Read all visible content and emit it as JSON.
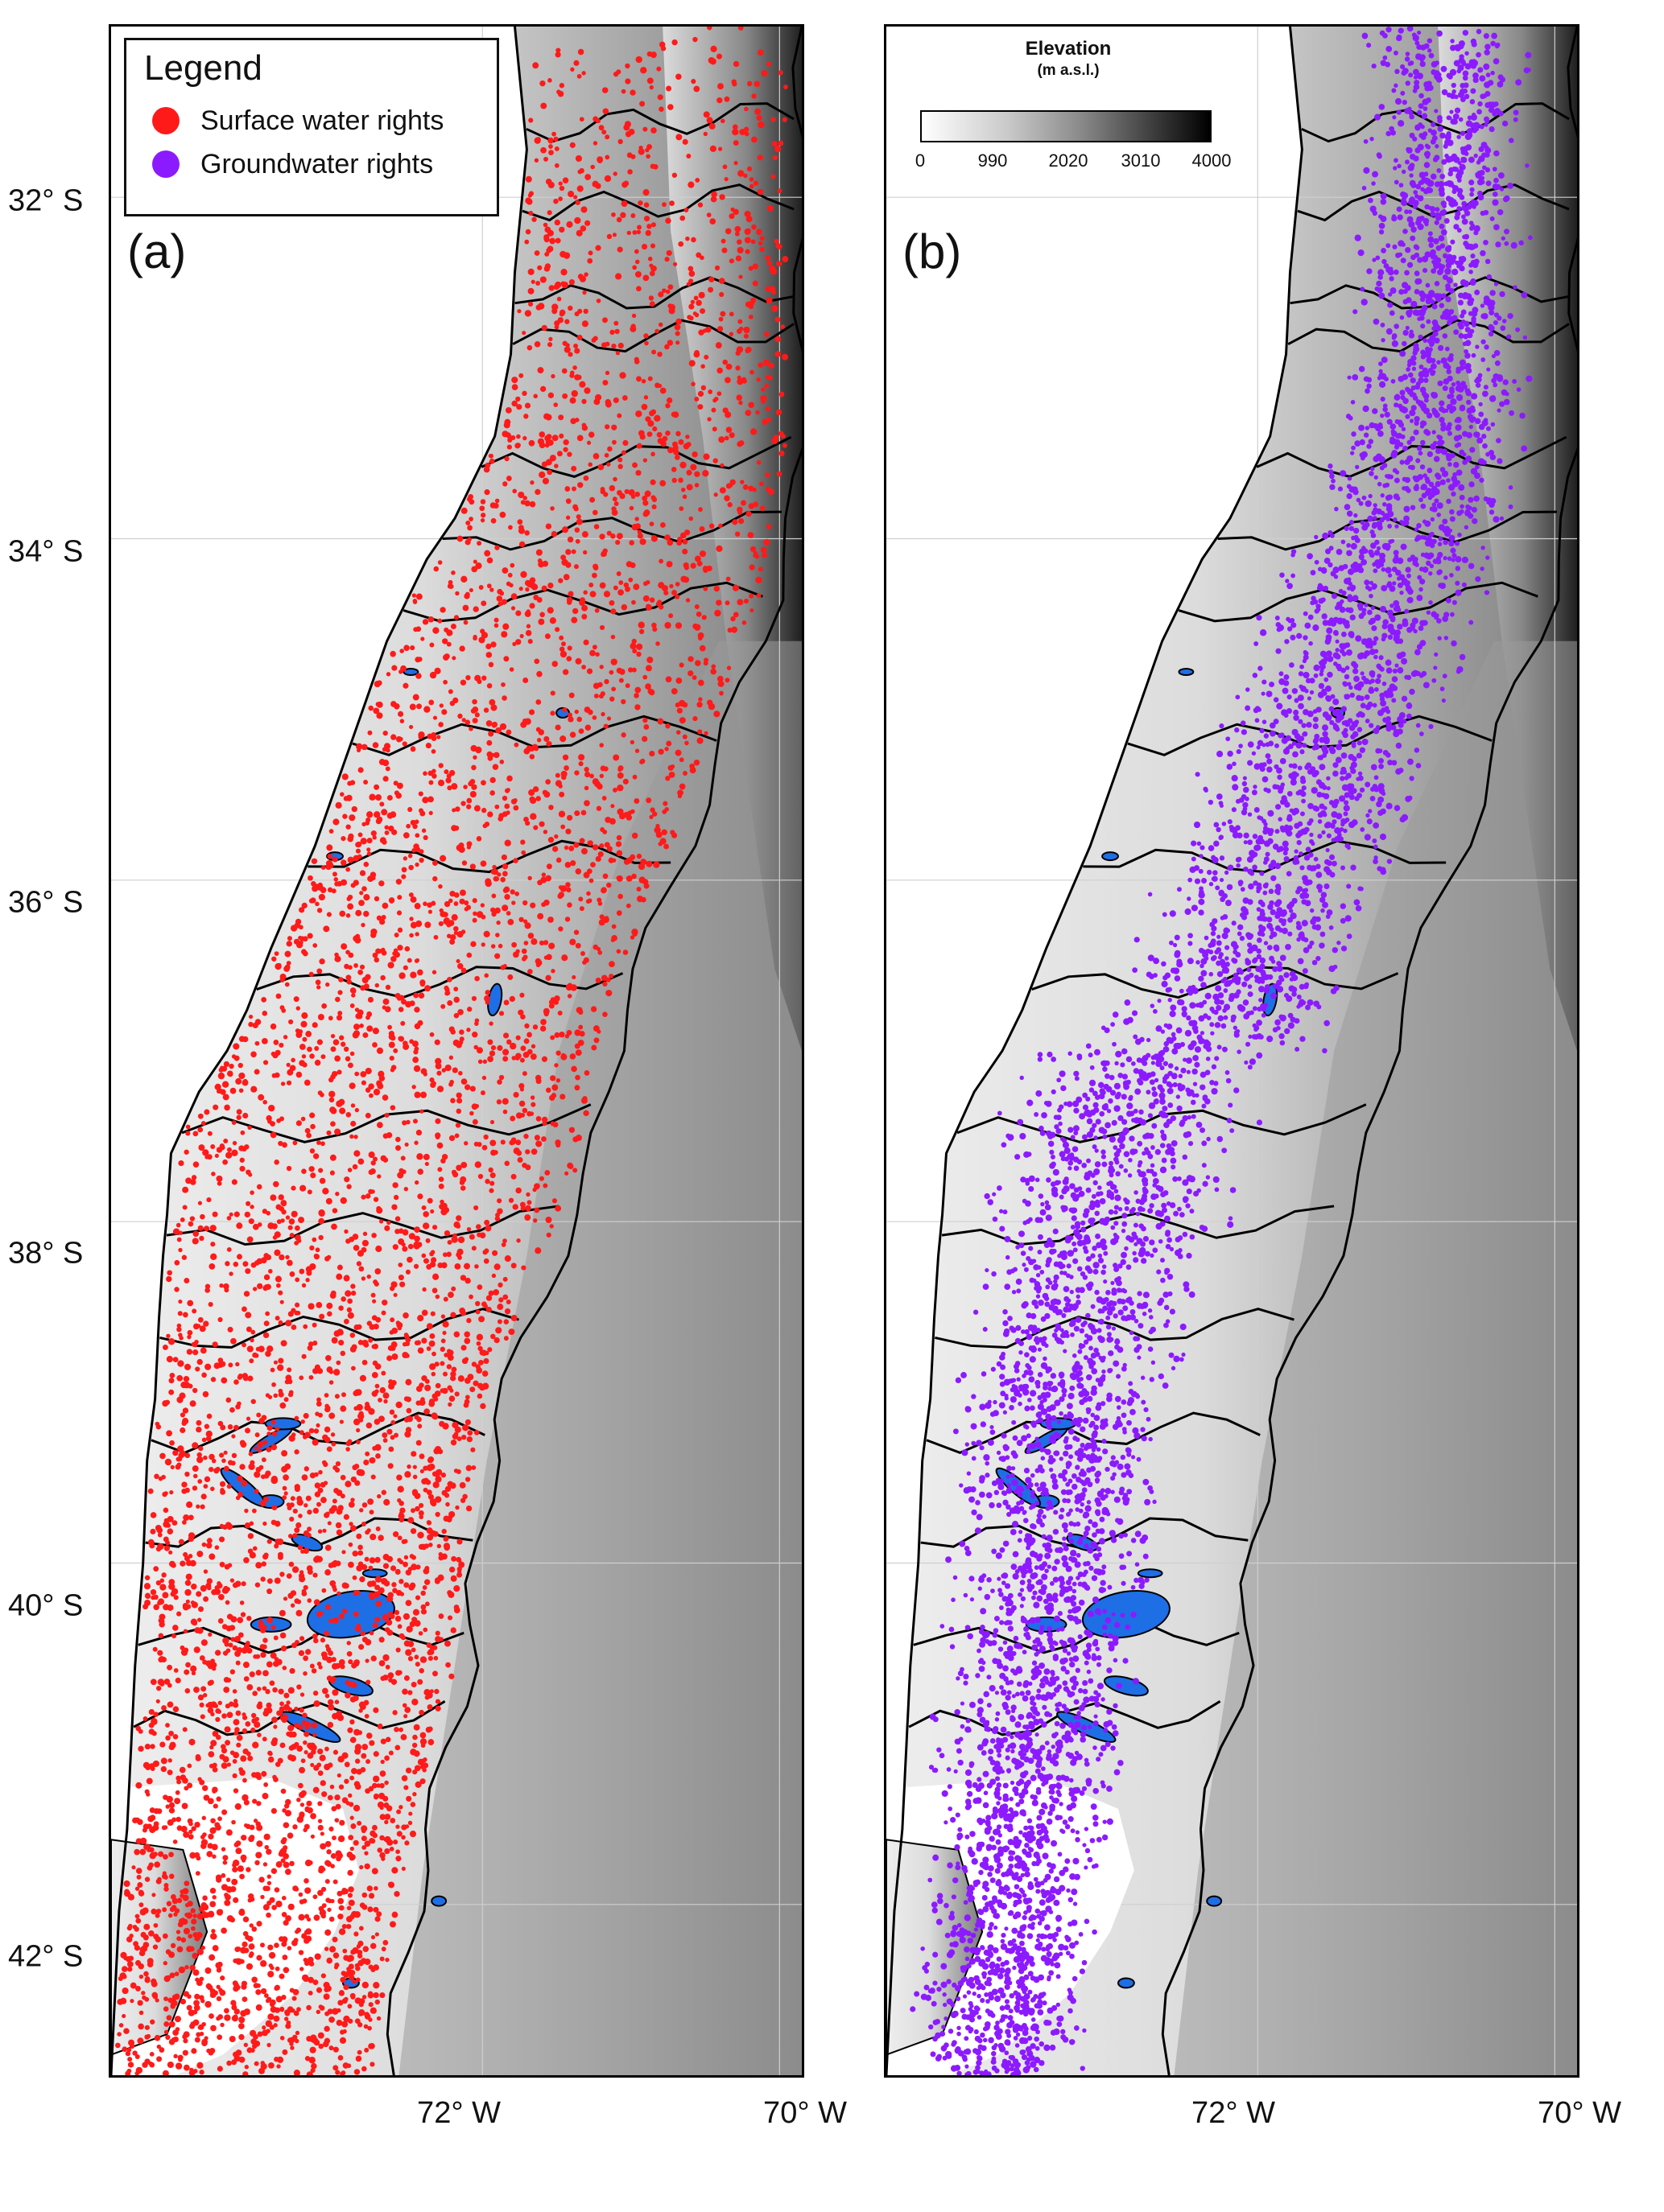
{
  "panels": [
    {
      "id": "a",
      "label": "(a)"
    },
    {
      "id": "b",
      "label": "(b)"
    }
  ],
  "legend": {
    "title": "Legend",
    "items": [
      {
        "label": "Surface water rights",
        "color": "#ff1a1a"
      },
      {
        "label": "Groundwater rights",
        "color": "#8c1aff"
      }
    ]
  },
  "colorbar": {
    "title": "Elevation",
    "unit": "(m a.s.l.)",
    "ticks": [
      "0",
      "990",
      "2020",
      "3010",
      "4000"
    ],
    "values": [
      0,
      990,
      2020,
      3010,
      4000
    ],
    "range": [
      0,
      4000
    ]
  },
  "axes": {
    "lat_labels": [
      "32° S",
      "34° S",
      "36° S",
      "38° S",
      "40° S",
      "42° S"
    ],
    "lat_values": [
      -32,
      -34,
      -36,
      -38,
      -40,
      -42
    ],
    "lon_labels": [
      "72° W",
      "70° W"
    ],
    "lon_values": [
      -72,
      -70
    ]
  },
  "colors": {
    "surface": "#ff1a1a",
    "ground": "#8c1aff",
    "lake": "#1e6ee6",
    "boundary": "#000000"
  }
}
